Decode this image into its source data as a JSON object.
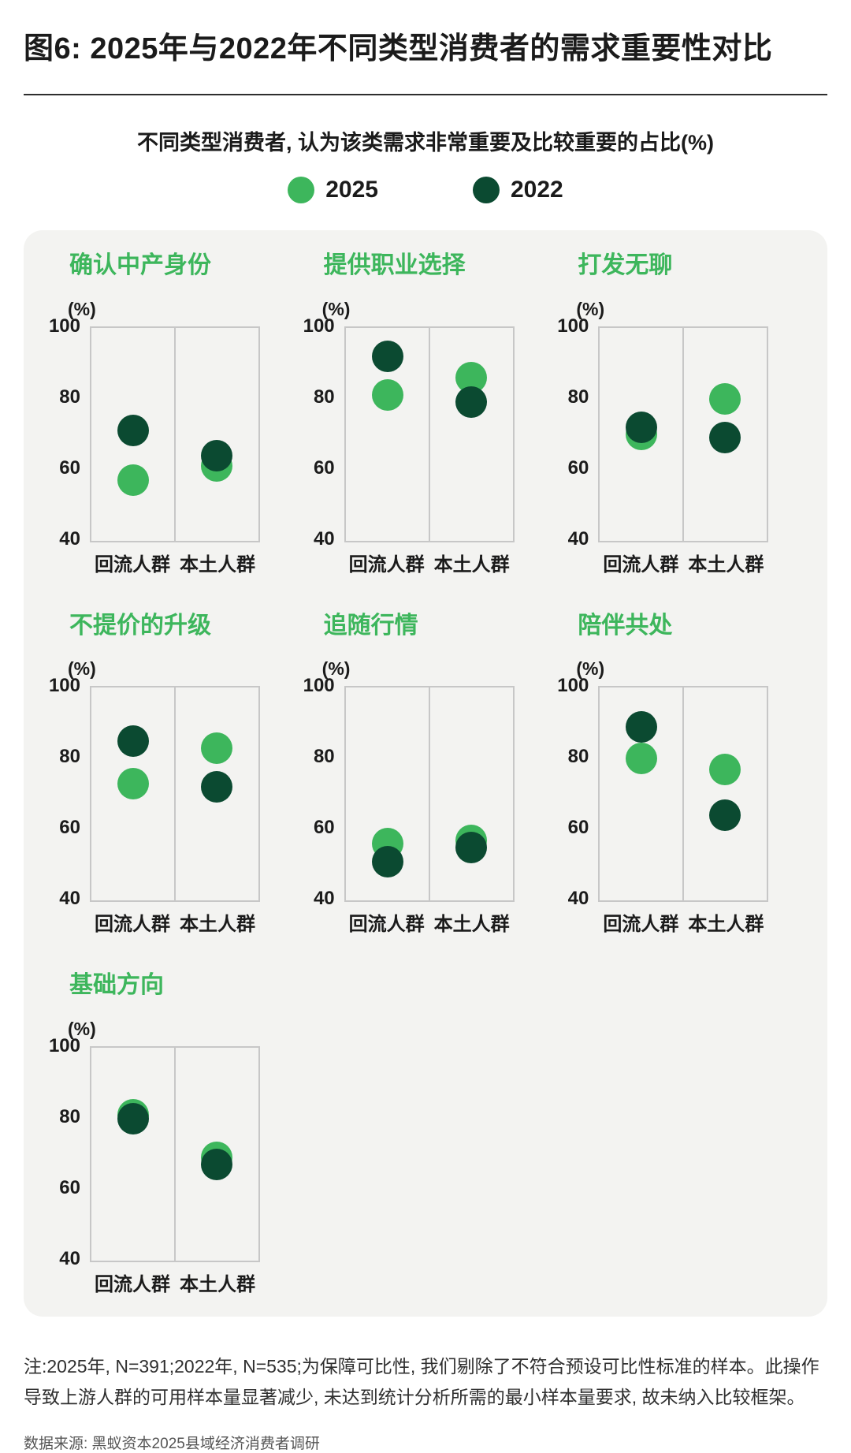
{
  "header": {
    "title": "图6: 2025年与2022年不同类型消费者的需求重要性对比",
    "subtitle": "不同类型消费者, 认为该类需求非常重要及比较重要的占比(%)"
  },
  "legend": {
    "items": [
      {
        "label": "2025",
        "color": "#3DB65C"
      },
      {
        "label": "2022",
        "color": "#0B4A31"
      }
    ]
  },
  "chart_data": {
    "type": "scatter",
    "title": "不同类型消费者, 认为该类需求非常重要及比较重要的占比(%)",
    "categories": [
      "回流人群",
      "本土人群"
    ],
    "ylabel": "(%)",
    "ylim": [
      40,
      100
    ],
    "yticks": [
      100,
      80,
      60,
      40
    ],
    "grid": false,
    "legend_position": "top",
    "series_colors": {
      "2025": "#3DB65C",
      "2022": "#0B4A31"
    },
    "panels": [
      {
        "title": "确认中产身份",
        "series": [
          {
            "name": "2025",
            "values": [
              57,
              61
            ]
          },
          {
            "name": "2022",
            "values": [
              71,
              64
            ]
          }
        ]
      },
      {
        "title": "提供职业选择",
        "series": [
          {
            "name": "2025",
            "values": [
              81,
              86
            ]
          },
          {
            "name": "2022",
            "values": [
              92,
              79
            ]
          }
        ]
      },
      {
        "title": "打发无聊",
        "series": [
          {
            "name": "2025",
            "values": [
              70,
              80
            ]
          },
          {
            "name": "2022",
            "values": [
              72,
              69
            ]
          }
        ]
      },
      {
        "title": "不提价的升级",
        "series": [
          {
            "name": "2025",
            "values": [
              73,
              83
            ]
          },
          {
            "name": "2022",
            "values": [
              85,
              72
            ]
          }
        ]
      },
      {
        "title": "追随行情",
        "series": [
          {
            "name": "2025",
            "values": [
              56,
              57
            ]
          },
          {
            "name": "2022",
            "values": [
              51,
              55
            ]
          }
        ]
      },
      {
        "title": "陪伴共处",
        "series": [
          {
            "name": "2025",
            "values": [
              80,
              77
            ]
          },
          {
            "name": "2022",
            "values": [
              89,
              64
            ]
          }
        ]
      },
      {
        "title": "基础方向",
        "series": [
          {
            "name": "2025",
            "values": [
              81,
              69
            ]
          },
          {
            "name": "2022",
            "values": [
              80,
              67
            ]
          }
        ]
      }
    ]
  },
  "footer": {
    "note": "注:2025年, N=391;2022年, N=535;为保障可比性, 我们剔除了不符合预设可比性标准的样本。此操作导致上游人群的可用样本量显著减少, 未达到统计分析所需的最小样本量要求, 故未纳入比较框架。",
    "source": "数据来源: 黑蚁资本2025县域经济消费者调研"
  }
}
